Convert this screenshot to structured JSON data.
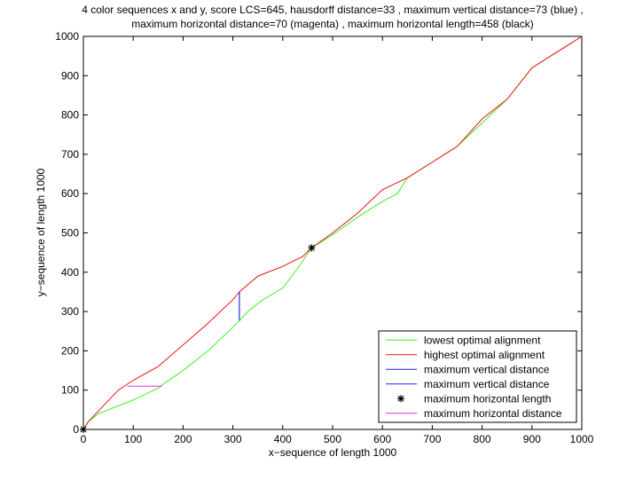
{
  "chart_data": {
    "type": "line",
    "title": [
      "4 color sequences x and y,  score LCS=645, hausdorff distance=33 , maximum vertical distance=73 (blue) ,",
      "maximum horizontal distance=70 (magenta) , maximum horizontal length=458 (black)"
    ],
    "xlabel": "x−sequence of length 1000",
    "ylabel": "y−sequence of length 1000",
    "xlim": [
      0,
      1000
    ],
    "ylim": [
      0,
      1000
    ],
    "xticks": [
      0,
      100,
      200,
      300,
      400,
      500,
      600,
      700,
      800,
      900,
      1000
    ],
    "yticks": [
      0,
      100,
      200,
      300,
      400,
      500,
      600,
      700,
      800,
      900,
      1000
    ],
    "legend": "lower right",
    "series": [
      {
        "name": "lowest optimal alignment",
        "color": "#44ee22",
        "marker": "none",
        "x": [
          0,
          10,
          30,
          60,
          100,
          150,
          160,
          200,
          250,
          300,
          313,
          330,
          360,
          400,
          430,
          458,
          500,
          550,
          600,
          630,
          650,
          700,
          750,
          800,
          850,
          900,
          950,
          1000
        ],
        "values": [
          0,
          20,
          40,
          55,
          75,
          105,
          115,
          150,
          200,
          260,
          277,
          300,
          330,
          360,
          410,
          462,
          495,
          540,
          580,
          600,
          640,
          680,
          720,
          780,
          840,
          920,
          960,
          1000
        ]
      },
      {
        "name": "highest optimal alignment",
        "color": "#ee1111",
        "marker": "none",
        "x": [
          0,
          10,
          40,
          70,
          100,
          150,
          200,
          250,
          300,
          313,
          350,
          400,
          440,
          458,
          500,
          550,
          600,
          650,
          700,
          750,
          800,
          850,
          900,
          950,
          1000
        ],
        "values": [
          0,
          20,
          60,
          100,
          125,
          160,
          215,
          270,
          330,
          350,
          390,
          415,
          440,
          462,
          500,
          550,
          610,
          640,
          680,
          720,
          790,
          840,
          920,
          960,
          1000
        ]
      },
      {
        "name": "maximum vertical distance",
        "color": "#2222ee",
        "marker": "none",
        "x": [
          313,
          313
        ],
        "values": [
          277,
          350
        ]
      },
      {
        "name": "maximum vertical distance",
        "color": "#2222ee",
        "marker": "none",
        "x": [
          313,
          313
        ],
        "values": [
          277,
          350
        ]
      },
      {
        "name": "maximum horizontal length",
        "color": "#000000",
        "marker": "*",
        "x": [
          0,
          458
        ],
        "values": [
          0,
          462
        ]
      },
      {
        "name": "maximum horizontal distance",
        "color": "#dd33dd",
        "marker": "none",
        "x": [
          88,
          158
        ],
        "values": [
          110,
          110
        ]
      }
    ]
  }
}
